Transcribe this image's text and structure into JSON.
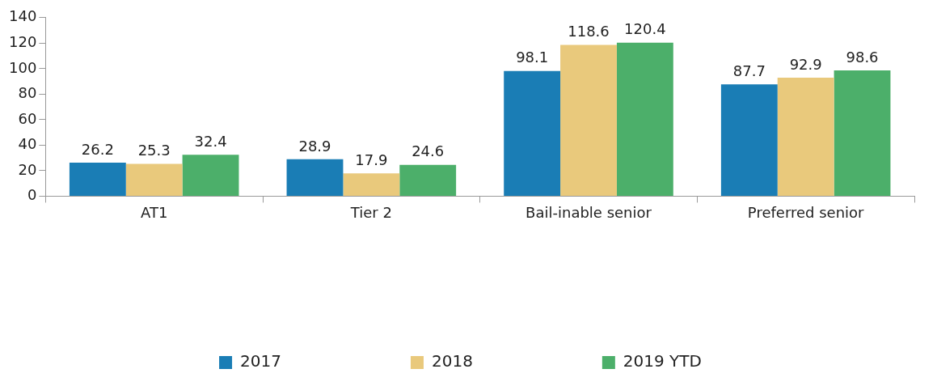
{
  "chart_data": {
    "type": "bar",
    "categories": [
      "AT1",
      "Tier 2",
      "Bail-inable senior",
      "Preferred senior"
    ],
    "series": [
      {
        "name": "2017",
        "color": "#1a7db5",
        "values": [
          26.2,
          28.9,
          98.1,
          87.7
        ]
      },
      {
        "name": "2018",
        "color": "#e9c97c",
        "values": [
          25.3,
          17.9,
          118.6,
          92.9
        ]
      },
      {
        "name": "2019 YTD",
        "color": "#4caf6a",
        "values": [
          32.4,
          24.6,
          120.4,
          98.6
        ]
      }
    ],
    "ylim": [
      0,
      140
    ],
    "yticks": [
      0,
      20,
      40,
      60,
      80,
      100,
      120,
      140
    ],
    "grid": false,
    "legend": "bottom",
    "data_labels": true
  }
}
